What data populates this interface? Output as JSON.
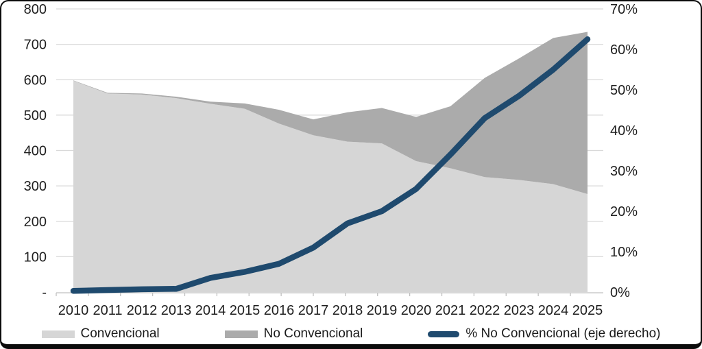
{
  "chart_data": {
    "type": "area",
    "title": "",
    "x": [
      2010,
      2011,
      2012,
      2013,
      2014,
      2015,
      2016,
      2017,
      2018,
      2019,
      2020,
      2021,
      2022,
      2023,
      2024,
      2025
    ],
    "series": [
      {
        "name": "Convencional",
        "type": "area",
        "axis": "left",
        "stacked": true,
        "values": [
          597,
          561,
          558,
          548,
          532,
          518,
          476,
          443,
          425,
          420,
          370,
          350,
          325,
          317,
          305,
          277
        ]
      },
      {
        "name": "No Convencional",
        "type": "area",
        "axis": "left",
        "stacked": true,
        "values": [
          1,
          2,
          3,
          4,
          6,
          15,
          39,
          45,
          83,
          100,
          125,
          175,
          280,
          343,
          413,
          458
        ]
      },
      {
        "name": "% No Convencional (eje derecho)",
        "type": "line",
        "axis": "right",
        "values": [
          0.3,
          0.5,
          0.7,
          0.8,
          3.5,
          5,
          7,
          11,
          17,
          20,
          25.5,
          34,
          43,
          48.5,
          55,
          62.5
        ]
      }
    ],
    "left_axis": {
      "min": 0,
      "max": 800,
      "step": 100,
      "tick_labels": [
        "-",
        "100",
        "200",
        "300",
        "400",
        "500",
        "600",
        "700",
        "800"
      ]
    },
    "right_axis": {
      "min": 0,
      "max": 70,
      "step": 10,
      "tick_labels": [
        "0%",
        "10%",
        "20%",
        "30%",
        "40%",
        "50%",
        "60%",
        "70%"
      ]
    },
    "grid": true,
    "legend_position": "bottom"
  },
  "colors": {
    "conventional_area": "#d6d6d6",
    "no_conventional_area": "#ababab",
    "pct_line": "#1f4a6e",
    "gridline": "#d9d9d9",
    "axis_line": "#c0c0c0",
    "axis_text": "#1f1f1f",
    "frame": "#0b0b0b"
  }
}
